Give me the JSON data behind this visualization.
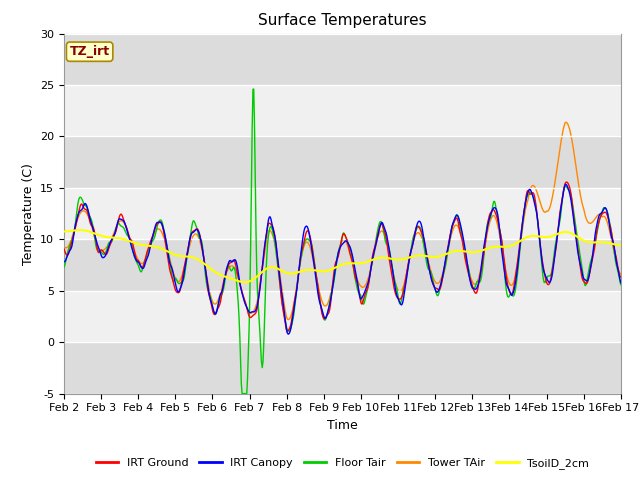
{
  "title": "Surface Temperatures",
  "xlabel": "Time",
  "ylabel": "Temperature (C)",
  "ylim": [
    -5,
    30
  ],
  "xlim": [
    0,
    15
  ],
  "x_tick_labels": [
    "Feb 2",
    "Feb 3",
    "Feb 4",
    "Feb 5",
    "Feb 6",
    "Feb 7",
    "Feb 8",
    "Feb 9",
    "Feb 10",
    "Feb 11",
    "Feb 12",
    "Feb 13",
    "Feb 14",
    "Feb 15",
    "Feb 16",
    "Feb 17"
  ],
  "series_colors": [
    "#ff0000",
    "#0000ff",
    "#00cc00",
    "#ff8800",
    "#ffff00"
  ],
  "series_names": [
    "IRT Ground",
    "IRT Canopy",
    "Floor Tair",
    "Tower TAir",
    "TsoilD_2cm"
  ],
  "plot_bg": "#f0f0f0",
  "annotation_text": "TZ_irt",
  "annotation_bg": "#ffffcc",
  "annotation_border": "#aa8800",
  "annotation_color": "#880000",
  "title_fontsize": 11,
  "label_fontsize": 9,
  "tick_fontsize": 8,
  "legend_fontsize": 8,
  "figsize": [
    6.4,
    4.8
  ],
  "dpi": 100
}
